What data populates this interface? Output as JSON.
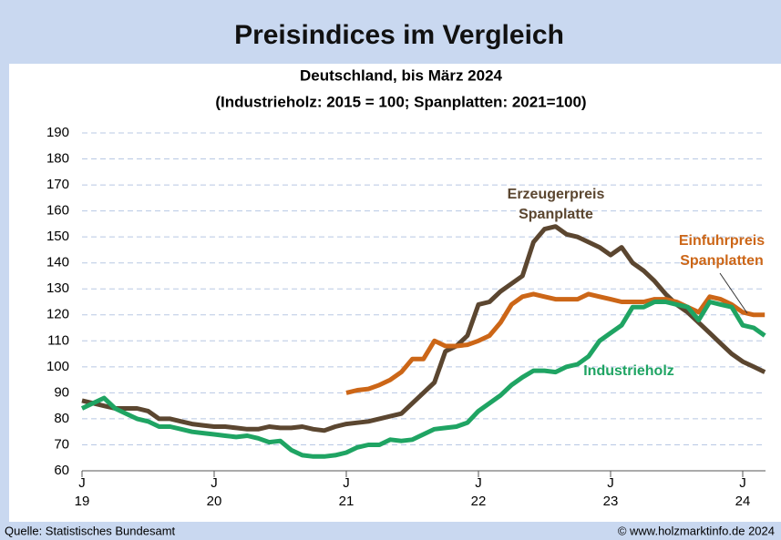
{
  "chart_data": {
    "type": "line",
    "title": "Preisindices im Vergleich",
    "subtitle": [
      "Deutschland, bis März 2024",
      "(Industrieholz: 2015 = 100; Spanplatten: 2021=100)"
    ],
    "categories": [
      [
        "J",
        "19"
      ],
      null,
      null,
      null,
      null,
      null,
      null,
      null,
      null,
      null,
      null,
      null,
      [
        "J",
        "20"
      ],
      null,
      null,
      null,
      null,
      null,
      null,
      null,
      null,
      null,
      null,
      null,
      [
        "J",
        "21"
      ],
      null,
      null,
      null,
      null,
      null,
      null,
      null,
      null,
      null,
      null,
      null,
      [
        "J",
        "22"
      ],
      null,
      null,
      null,
      null,
      null,
      null,
      null,
      null,
      null,
      null,
      null,
      [
        "J",
        "23"
      ],
      null,
      null,
      null,
      null,
      null,
      null,
      null,
      null,
      null,
      null,
      null,
      [
        "J",
        "24"
      ],
      null,
      null
    ],
    "series": [
      {
        "name": "Erzeugerpreis Spanplatte",
        "color": "#5b4630",
        "values": [
          87,
          86,
          85,
          84,
          84,
          84,
          83,
          80,
          80,
          79,
          78,
          77.5,
          77,
          77,
          76.5,
          76,
          76,
          77,
          76.5,
          76.5,
          77,
          76,
          75.5,
          77,
          78,
          78.5,
          79,
          80,
          81,
          82,
          86,
          90,
          94,
          106,
          108,
          112,
          124,
          125,
          129,
          132,
          135,
          148,
          153,
          154,
          151,
          150,
          148,
          146,
          143,
          146,
          140,
          137,
          133,
          128,
          124,
          121,
          117,
          113,
          109,
          105,
          102,
          100,
          98
        ]
      },
      {
        "name": "Einfuhrpreis Spanplatten",
        "color": "#cc6617",
        "values": [
          null,
          null,
          null,
          null,
          null,
          null,
          null,
          null,
          null,
          null,
          null,
          null,
          null,
          null,
          null,
          null,
          null,
          null,
          null,
          null,
          null,
          null,
          null,
          null,
          90,
          91,
          91.5,
          93,
          95,
          98,
          103,
          103,
          110,
          108,
          108,
          108.5,
          110,
          112,
          117,
          124,
          127,
          128,
          127,
          126,
          126,
          126,
          128,
          127,
          126,
          125,
          125,
          125,
          126,
          126,
          125,
          123,
          121,
          127,
          126,
          124,
          121,
          120,
          120
        ]
      },
      {
        "name": "Industrieholz",
        "color": "#1fa463",
        "values": [
          84,
          86,
          88,
          84,
          82,
          80,
          79,
          77,
          77,
          76,
          75,
          74.5,
          74,
          73.5,
          73,
          73.5,
          72.5,
          71,
          71.5,
          68,
          66,
          65.5,
          65.5,
          66,
          67,
          69,
          70,
          70,
          72,
          71.5,
          72,
          74,
          76,
          76.5,
          77,
          78.5,
          83,
          86,
          89,
          93,
          96,
          98.5,
          98.5,
          98,
          100,
          101,
          104,
          110,
          113,
          116,
          123,
          123,
          125,
          125,
          124,
          123,
          118,
          125,
          124,
          123,
          116,
          115,
          112
        ]
      }
    ],
    "annotations": [
      {
        "lines": [
          "Erzeugerpreis",
          "Spanplatte"
        ],
        "color": "#5b4630"
      },
      {
        "lines": [
          "Einfuhrpreis",
          "Spanplatten"
        ],
        "color": "#cc6617"
      },
      {
        "lines": [
          "Industrieholz"
        ],
        "color": "#1fa463"
      }
    ],
    "ylim": [
      60,
      190
    ],
    "yticks": [
      60,
      70,
      80,
      90,
      100,
      110,
      120,
      130,
      140,
      150,
      160,
      170,
      180,
      190
    ],
    "grid": true,
    "source": "Quelle:  Statistisches Bundesamt",
    "credit": "© www.holzmarktinfo.de  2024"
  }
}
